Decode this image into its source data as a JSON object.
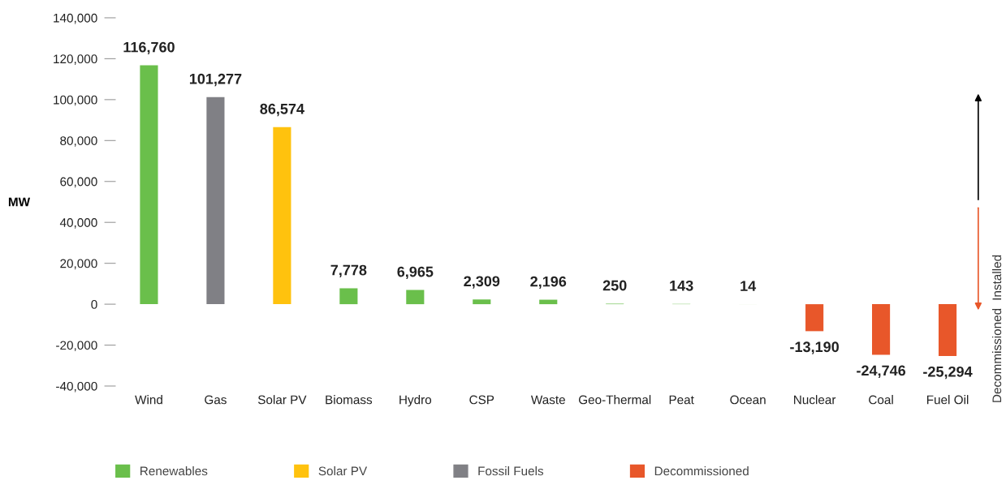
{
  "chart_data": {
    "type": "bar",
    "ylabel": "MW",
    "categories": [
      "Wind",
      "Gas",
      "Solar PV",
      "Biomass",
      "Hydro",
      "CSP",
      "Waste",
      "Geo-Thermal",
      "Peat",
      "Ocean",
      "Nuclear",
      "Coal",
      "Fuel Oil"
    ],
    "series": [
      {
        "name": "Renewables",
        "color": "#6abf4b",
        "values": [
          116760,
          null,
          null,
          7778,
          6965,
          2309,
          2196,
          250,
          143,
          14,
          null,
          null,
          null
        ],
        "value_labels": [
          "116,760",
          null,
          null,
          "7,778",
          "6,965",
          "2,309",
          "2,196",
          "250",
          "143",
          "14",
          null,
          null,
          null
        ]
      },
      {
        "name": "Solar PV",
        "color": "#ffc20e",
        "values": [
          null,
          null,
          86574,
          null,
          null,
          null,
          null,
          null,
          null,
          null,
          null,
          null,
          null
        ],
        "value_labels": [
          null,
          null,
          "86,574",
          null,
          null,
          null,
          null,
          null,
          null,
          null,
          null,
          null,
          null
        ]
      },
      {
        "name": "Fossil Fuels",
        "color": "#808085",
        "values": [
          null,
          101277,
          null,
          null,
          null,
          null,
          null,
          null,
          null,
          null,
          null,
          null,
          null
        ],
        "value_labels": [
          null,
          "101,277",
          null,
          null,
          null,
          null,
          null,
          null,
          null,
          null,
          null,
          null,
          null
        ]
      },
      {
        "name": "Decommissioned",
        "color": "#e8572a",
        "values": [
          null,
          null,
          null,
          null,
          null,
          null,
          null,
          null,
          null,
          null,
          -13190,
          -24746,
          -25294
        ],
        "value_labels": [
          null,
          null,
          null,
          null,
          null,
          null,
          null,
          null,
          null,
          null,
          "-13,190",
          "-24,746",
          "-25,294"
        ]
      }
    ],
    "ylim": [
      -40000,
      140000
    ],
    "yticks": [
      {
        "value": -40000,
        "label": "-40,000"
      },
      {
        "value": -20000,
        "label": "-20,000"
      },
      0,
      {
        "value": 20000,
        "label": "20,000"
      },
      {
        "value": 40000,
        "label": "40,000"
      },
      {
        "value": 60000,
        "label": "60,000"
      },
      {
        "value": 80000,
        "label": "80,000"
      },
      {
        "value": 100000,
        "label": "100,000"
      },
      {
        "value": 120000,
        "label": "120,000"
      },
      {
        "value": 140000,
        "label": "140,000"
      }
    ],
    "annotations": [
      "Installed",
      "Decommissioned"
    ],
    "legend": "bottom",
    "grid": false
  }
}
